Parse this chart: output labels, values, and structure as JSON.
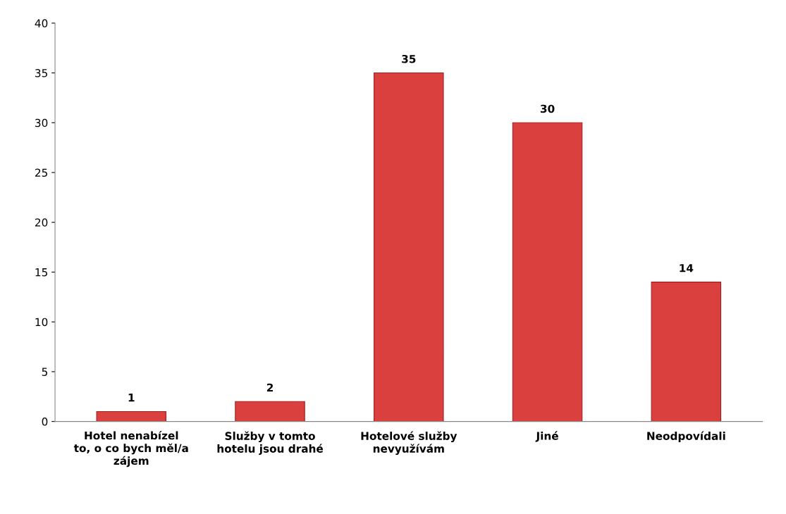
{
  "chart_data": {
    "type": "bar",
    "categories": [
      "Hotel nenabízel\nto, o co bych měl/a\nzájem",
      "Služby v tomto\nhotelu jsou drahé",
      "Hotelové služby\nnevyužívám",
      "Jiné",
      "Neodpovídali"
    ],
    "values": [
      1,
      2,
      35,
      30,
      14
    ],
    "color": "#d9403e",
    "ylim": [
      0,
      40
    ],
    "yticks": [
      0,
      5,
      10,
      15,
      20,
      25,
      30,
      35,
      40
    ],
    "data_labels": true,
    "grid": false,
    "legend": false
  }
}
